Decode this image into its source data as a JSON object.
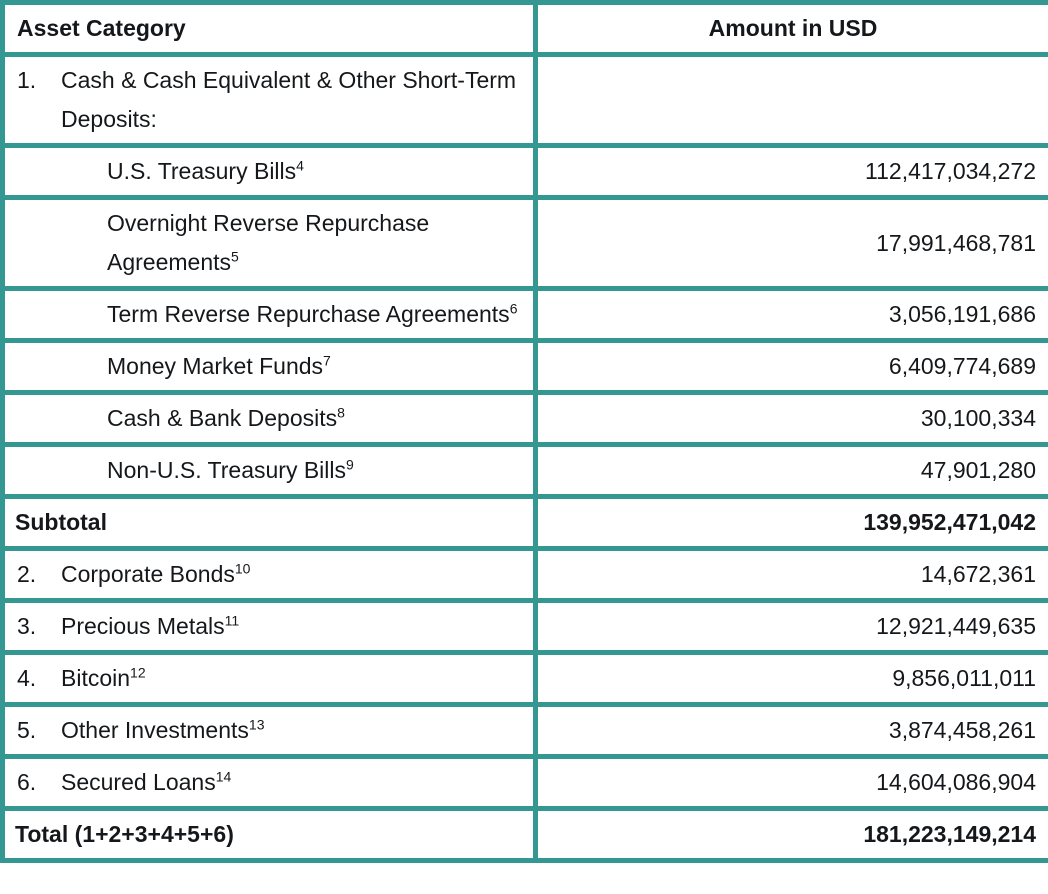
{
  "page": {
    "background_color": "#ffffff",
    "border_color": "#359792",
    "text_color": "#15181b"
  },
  "table": {
    "columns": [
      {
        "label": "Asset Category"
      },
      {
        "label": "Amount in USD"
      }
    ],
    "rows": [
      {
        "type": "section",
        "number": "1.",
        "label": "Cash & Cash Equivalent & Other Short-Term Deposits:",
        "footnote": "",
        "amount": ""
      },
      {
        "type": "sub",
        "number": "",
        "label": "U.S. Treasury Bills",
        "footnote": "4",
        "amount": "112,417,034,272"
      },
      {
        "type": "sub",
        "number": "",
        "label": "Overnight Reverse Repurchase Agreements",
        "footnote": "5",
        "amount": "17,991,468,781"
      },
      {
        "type": "sub",
        "number": "",
        "label": "Term Reverse Repurchase Agreements",
        "footnote": "6",
        "amount": "3,056,191,686"
      },
      {
        "type": "sub",
        "number": "",
        "label": "Money Market Funds",
        "footnote": "7",
        "amount": "6,409,774,689"
      },
      {
        "type": "sub",
        "number": "",
        "label": "Cash & Bank Deposits",
        "footnote": "8",
        "amount": "30,100,334"
      },
      {
        "type": "sub",
        "number": "",
        "label": "Non-U.S. Treasury Bills",
        "footnote": "9",
        "amount": "47,901,280"
      },
      {
        "type": "subtotal",
        "number": "",
        "label": "Subtotal",
        "footnote": "",
        "amount": "139,952,471,042"
      },
      {
        "type": "section",
        "number": "2.",
        "label": "Corporate Bonds",
        "footnote": "10",
        "amount": "14,672,361"
      },
      {
        "type": "section",
        "number": "3.",
        "label": "Precious Metals",
        "footnote": "11",
        "amount": "12,921,449,635"
      },
      {
        "type": "section",
        "number": "4.",
        "label": "Bitcoin",
        "footnote": "12",
        "amount": "9,856,011,011"
      },
      {
        "type": "section",
        "number": "5.",
        "label": "Other Investments",
        "footnote": "13",
        "amount": "3,874,458,261"
      },
      {
        "type": "section",
        "number": "6.",
        "label": "Secured Loans",
        "footnote": "14",
        "amount": "14,604,086,904"
      },
      {
        "type": "total",
        "number": "",
        "label": "Total (1+2+3+4+5+6)",
        "footnote": "",
        "amount": "181,223,149,214"
      }
    ]
  }
}
